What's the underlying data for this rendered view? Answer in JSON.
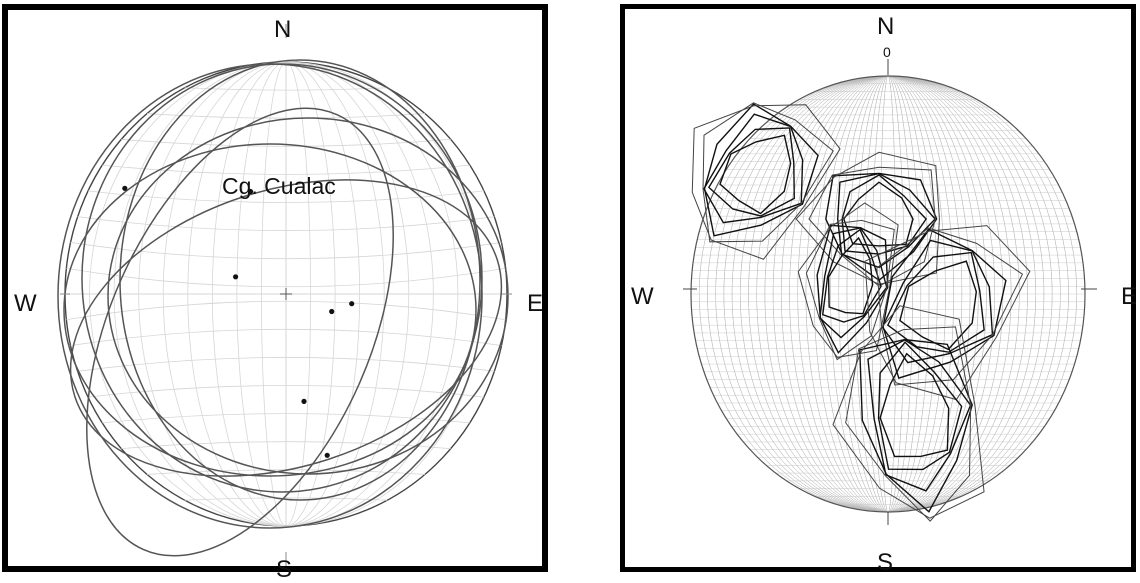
{
  "left_plot": {
    "title": "Cg. Cualac",
    "labels": {
      "north": "N",
      "south": "S",
      "west": "W",
      "east": "E"
    },
    "poles": [
      {
        "azimuth": 302,
        "distance": 0.86
      },
      {
        "azimuth": 340,
        "distance": 0.47
      },
      {
        "azimuth": 288,
        "distance": 0.24
      },
      {
        "azimuth": 98,
        "distance": 0.3
      },
      {
        "azimuth": 110,
        "distance": 0.22
      },
      {
        "azimuth": 170,
        "distance": 0.47
      },
      {
        "azimuth": 165,
        "distance": 0.72
      }
    ],
    "great_circles": 7
  },
  "right_plot": {
    "labels": {
      "north": "N",
      "south": "S",
      "west": "W",
      "east": "E",
      "zero": "0"
    },
    "contour_clusters": 5
  }
}
